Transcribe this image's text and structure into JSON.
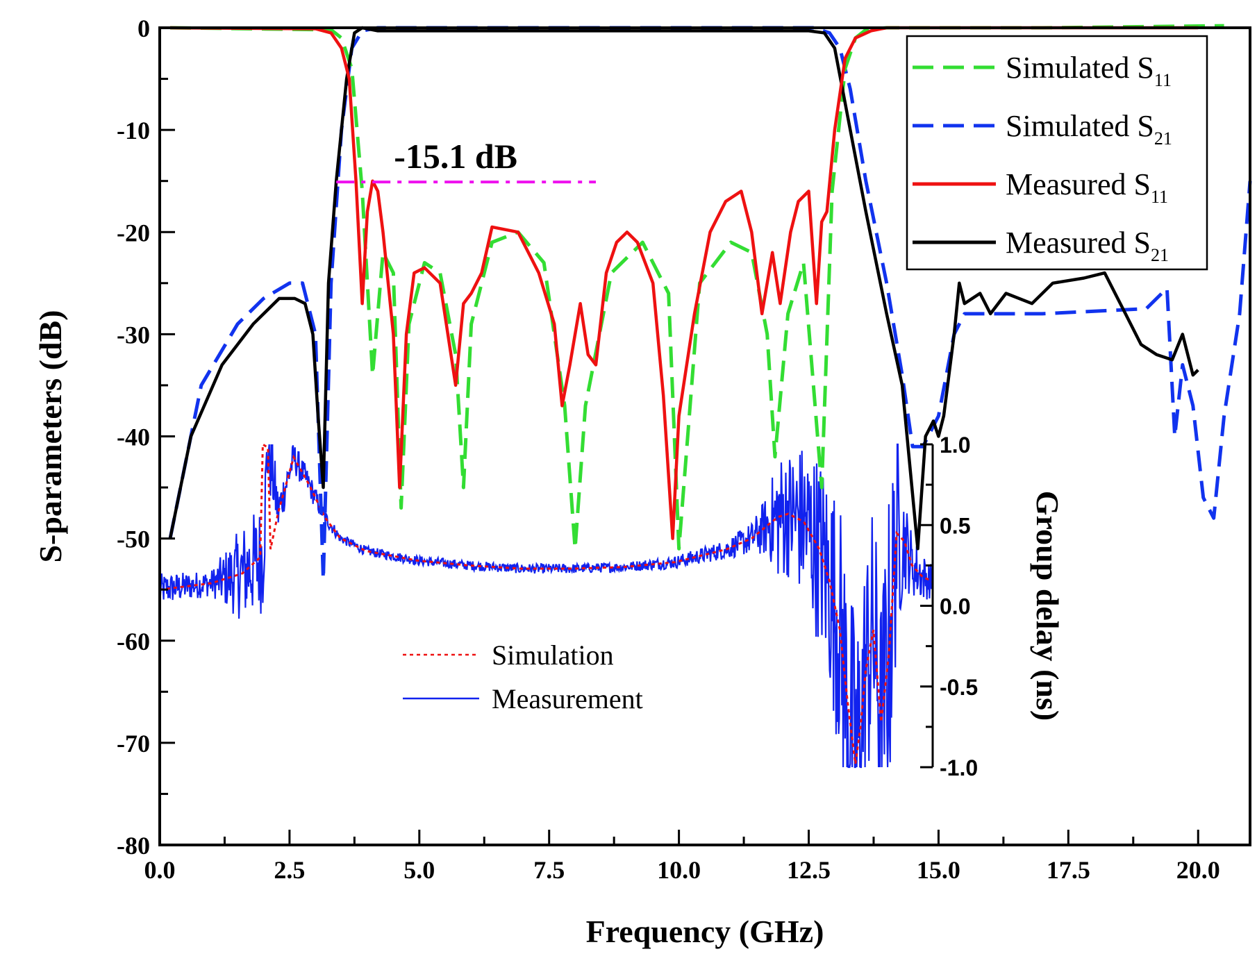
{
  "chart_data": {
    "type": "line",
    "xlabel": "Frequency (GHz)",
    "ylabel": "S-parameters (dB)",
    "y2label": "Group delay (ns)",
    "xlim": [
      0,
      21
    ],
    "ylim": [
      -80,
      0
    ],
    "y2lim": [
      -1.0,
      1.0
    ],
    "x_ticks": [
      "0.0",
      "2.5",
      "5.0",
      "7.5",
      "10.0",
      "12.5",
      "15.0",
      "17.5",
      "20.0"
    ],
    "y_ticks": [
      "0",
      "-10",
      "-20",
      "-30",
      "-40",
      "-50",
      "-60",
      "-70",
      "-80"
    ],
    "y2_ticks": [
      "1.0",
      "0.5",
      "0.0",
      "-0.5",
      "-1.0"
    ],
    "grid": false,
    "annotation": {
      "text": "-15.1 dB",
      "level_db": -15.1,
      "x_range": [
        3.4,
        8.4
      ]
    },
    "legend": {
      "placement": "top-right",
      "items": [
        {
          "label": "Simulated S",
          "sub": "11"
        },
        {
          "label": "Simulated S",
          "sub": "21"
        },
        {
          "label": "Measured S",
          "sub": "11"
        },
        {
          "label": "Measured S",
          "sub": "21"
        }
      ]
    },
    "inset_legend": {
      "placement": "lower-middle",
      "items": [
        "Simulation",
        "Measurement"
      ]
    },
    "colors": {
      "sim_s11": "#33dd33",
      "sim_s21": "#1133ee",
      "meas_s11": "#ee1111",
      "meas_s21": "#000000",
      "annotation": "#ee11ee",
      "gd_sim": "#ee1111",
      "gd_meas": "#1122ee"
    },
    "series": [
      {
        "name": "Simulated S11",
        "key": "sim_s11",
        "style": "dashed",
        "x": [
          0.2,
          3.3,
          3.5,
          3.7,
          3.9,
          4.1,
          4.3,
          4.5,
          4.65,
          4.8,
          5.1,
          5.4,
          5.7,
          5.85,
          6.0,
          6.4,
          6.9,
          7.4,
          7.8,
          8.0,
          8.2,
          8.7,
          9.3,
          9.8,
          10.0,
          10.4,
          11.0,
          11.4,
          11.7,
          11.85,
          12.1,
          12.4,
          12.75,
          12.95,
          13.2,
          13.4,
          13.6,
          14,
          17,
          20.5
        ],
        "y": [
          0,
          -0.2,
          -1,
          -4,
          -16,
          -34,
          -22,
          -24,
          -47,
          -29,
          -23,
          -24,
          -32,
          -45,
          -29,
          -21,
          -20,
          -23,
          -37,
          -51,
          -37,
          -24,
          -21,
          -26,
          -51,
          -25,
          -21,
          -22,
          -30,
          -42,
          -28,
          -23,
          -45,
          -16,
          -4,
          -1,
          -0.2,
          0,
          0,
          0.2
        ]
      },
      {
        "name": "Simulated S21",
        "key": "sim_s21",
        "style": "dashed",
        "x": [
          0.2,
          0.8,
          1.5,
          2.0,
          2.5,
          2.75,
          3.0,
          3.15,
          3.3,
          3.5,
          3.7,
          3.9,
          4.2,
          7,
          12.6,
          12.9,
          13.1,
          13.3,
          13.6,
          14,
          14.3,
          14.5,
          14.7,
          15.0,
          15.3,
          15.5,
          16,
          17,
          19,
          19.4,
          19.55,
          19.7,
          19.9,
          20.1,
          20.3,
          20.5,
          20.8,
          21.0
        ],
        "y": [
          -50,
          -35,
          -29,
          -26.5,
          -25,
          -25,
          -30,
          -54,
          -25,
          -10,
          -2,
          -0.3,
          0,
          0,
          0,
          -0.5,
          -2,
          -6,
          -15,
          -25,
          -34,
          -41,
          -41,
          -38,
          -30,
          -28,
          -28,
          -28,
          -27.5,
          -25.5,
          -40,
          -33,
          -37,
          -46,
          -48,
          -38,
          -28,
          -15
        ]
      },
      {
        "name": "Measured S11",
        "key": "meas_s11",
        "style": "solid",
        "x": [
          0.2,
          3.0,
          3.3,
          3.5,
          3.65,
          3.78,
          3.9,
          4.0,
          4.1,
          4.2,
          4.3,
          4.5,
          4.62,
          4.75,
          4.9,
          5.1,
          5.4,
          5.55,
          5.7,
          5.85,
          6.0,
          6.2,
          6.4,
          6.9,
          7.3,
          7.6,
          7.75,
          7.9,
          8.1,
          8.25,
          8.4,
          8.6,
          8.8,
          9.0,
          9.2,
          9.5,
          9.7,
          9.88,
          10.0,
          10.3,
          10.6,
          10.9,
          11.2,
          11.4,
          11.6,
          11.8,
          11.95,
          12.15,
          12.3,
          12.5,
          12.65,
          12.75,
          12.85,
          13.0,
          13.2,
          13.4,
          13.7,
          14,
          17,
          20
        ],
        "y": [
          0,
          -0.1,
          -0.5,
          -2,
          -5,
          -15,
          -27,
          -18,
          -15,
          -16,
          -20,
          -30,
          -45,
          -30,
          -24,
          -23.5,
          -25,
          -30,
          -35,
          -27,
          -26,
          -24,
          -19.5,
          -20,
          -24,
          -29,
          -37,
          -33,
          -27,
          -32,
          -33,
          -24,
          -21,
          -20,
          -21,
          -25,
          -36,
          -50,
          -38,
          -28,
          -20,
          -17,
          -16,
          -20,
          -28,
          -22,
          -27,
          -20,
          -17,
          -16,
          -27,
          -19,
          -18,
          -10,
          -3,
          -1,
          -0.3,
          0,
          0,
          0
        ]
      },
      {
        "name": "Measured S21",
        "key": "meas_s21",
        "style": "solid",
        "x": [
          0.2,
          0.6,
          1.2,
          1.8,
          2.3,
          2.6,
          2.8,
          2.95,
          3.05,
          3.15,
          3.25,
          3.4,
          3.6,
          3.75,
          3.9,
          4.2,
          7,
          12.5,
          12.8,
          13.0,
          13.3,
          13.6,
          14.0,
          14.3,
          14.45,
          14.6,
          14.75,
          14.9,
          15.0,
          15.1,
          15.2,
          15.3,
          15.4,
          15.5,
          15.8,
          16.0,
          16.3,
          16.8,
          17.2,
          17.8,
          18.2,
          18.6,
          18.9,
          19.2,
          19.5,
          19.7,
          19.9,
          20.0
        ],
        "y": [
          -50,
          -40,
          -33,
          -29,
          -26.5,
          -26.5,
          -27,
          -30,
          -38,
          -45,
          -25,
          -15,
          -5,
          -0.5,
          0,
          -0.3,
          -0.3,
          -0.3,
          -0.5,
          -2,
          -10,
          -18,
          -28,
          -35,
          -43,
          -51,
          -40,
          -38.5,
          -40,
          -38,
          -34,
          -30,
          -25,
          -27,
          -26,
          -28,
          -26,
          -27,
          -25,
          -24.5,
          -24,
          -28,
          -31,
          -32,
          -32.5,
          -30,
          -34,
          -33.5
        ]
      }
    ],
    "group_delay": {
      "xlim": [
        0,
        15
      ],
      "series": [
        {
          "name": "Simulation",
          "key": "gd_sim",
          "style": "dotted",
          "x": [
            0.0,
            1.0,
            1.6,
            1.95,
            2.0,
            2.1,
            2.15,
            2.3,
            2.6,
            2.9,
            3.2,
            3.5,
            4.0,
            5.0,
            6.0,
            7.0,
            8.0,
            9.0,
            10.0,
            11.0,
            11.5,
            11.8,
            12.0,
            12.2,
            12.5,
            12.8,
            13.0,
            13.2,
            13.35,
            13.5,
            13.6,
            13.7,
            13.85,
            14.0,
            14.15,
            14.3,
            14.45,
            14.6,
            14.8,
            15.0
          ],
          "y": [
            0.1,
            0.14,
            0.2,
            0.3,
            1.0,
            0.98,
            0.35,
            0.58,
            0.92,
            0.75,
            0.55,
            0.42,
            0.34,
            0.28,
            0.25,
            0.23,
            0.23,
            0.24,
            0.27,
            0.35,
            0.42,
            0.5,
            0.55,
            0.57,
            0.52,
            0.35,
            0.15,
            -0.15,
            -0.6,
            -0.98,
            -0.75,
            -0.4,
            -0.15,
            -0.72,
            -0.3,
            0.45,
            0.4,
            0.25,
            0.18,
            0.15
          ]
        }
      ],
      "measurement": {
        "name": "Measurement",
        "key": "gd_meas",
        "style": "solid",
        "x": [
          0.0,
          1.0,
          1.6,
          2.0,
          2.1,
          2.3,
          2.6,
          2.9,
          3.2,
          3.5,
          4.0,
          5.0,
          6.0,
          7.0,
          8.0,
          9.0,
          10.0,
          11.0,
          11.5,
          11.8,
          12.0,
          12.2,
          12.5,
          12.8,
          13.0,
          13.2,
          13.35,
          13.5,
          13.6,
          13.7,
          13.85,
          14.0,
          14.15,
          14.3,
          14.45,
          14.6,
          14.8,
          15.0
        ],
        "y": [
          0.1,
          0.14,
          0.2,
          0.3,
          1.0,
          0.58,
          0.92,
          0.75,
          0.55,
          0.42,
          0.34,
          0.28,
          0.25,
          0.23,
          0.23,
          0.24,
          0.27,
          0.35,
          0.42,
          0.5,
          0.55,
          0.57,
          0.52,
          0.35,
          0.15,
          -0.15,
          -0.6,
          -0.98,
          -0.75,
          -0.4,
          -0.15,
          -0.72,
          -0.3,
          0.45,
          0.4,
          0.25,
          0.18,
          0.15
        ],
        "noise_amplitude_ns": [
          0.1,
          0.08,
          0.3,
          0.35,
          0.3,
          0.15,
          0.1,
          0.08,
          0.05,
          0.03,
          0.03,
          0.03,
          0.03,
          0.03,
          0.03,
          0.03,
          0.04,
          0.06,
          0.1,
          0.2,
          0.4,
          0.4,
          0.5,
          0.6,
          0.7,
          0.8,
          0.9,
          0.9,
          0.8,
          0.8,
          0.8,
          0.8,
          1.0,
          0.7,
          0.3,
          0.2,
          0.15,
          0.1
        ]
      }
    }
  }
}
